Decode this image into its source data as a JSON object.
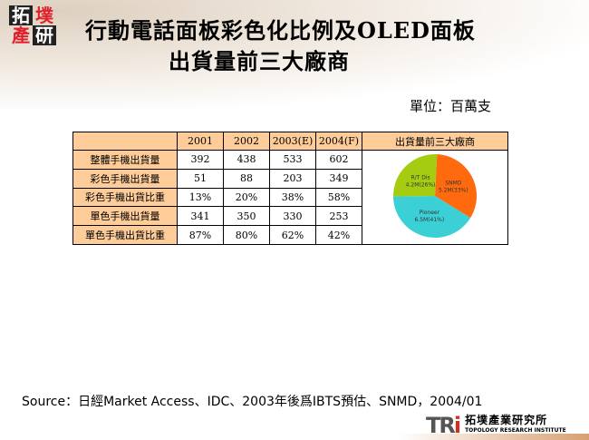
{
  "logo": {
    "chars": [
      "拓",
      "墣",
      "產",
      "研"
    ]
  },
  "title": {
    "line1": "行動電話面板彩色化比例及OLED面板",
    "line2": "出貨量前三大廠商"
  },
  "unit": "單位：百萬支",
  "table": {
    "headers": [
      "",
      "2001",
      "2002",
      "2003(E)",
      "2004(F)",
      "出貨量前三大廠商"
    ],
    "rows": [
      {
        "label": "整體手機出貨量",
        "values": [
          "392",
          "438",
          "533",
          "602"
        ]
      },
      {
        "label": "彩色手機出貨量",
        "values": [
          "51",
          "88",
          "203",
          "349"
        ]
      },
      {
        "label": "彩色手機出貨比重",
        "values": [
          "13%",
          "20%",
          "38%",
          "58%"
        ]
      },
      {
        "label": "單色手機出貨量",
        "values": [
          "341",
          "350",
          "330",
          "253"
        ]
      },
      {
        "label": "單色手機出貨比重",
        "values": [
          "87%",
          "80%",
          "62%",
          "42%"
        ]
      }
    ]
  },
  "chart_data": {
    "type": "pie",
    "slices": [
      {
        "name": "SNMD",
        "label": "5.2M(33%)",
        "value": 5.2,
        "percent": 33,
        "color": "#ff6a0e"
      },
      {
        "name": "Pioneer",
        "label": "6.5M(41%)",
        "value": 6.5,
        "percent": 41,
        "color": "#3bd0d6"
      },
      {
        "name": "R/T Dis",
        "label": "4.2M(26%)",
        "value": 4.2,
        "percent": 26,
        "color": "#a6cc12"
      }
    ]
  },
  "source": "Source：日經Market Access、IDC、2003年後爲IBTS預估、SNMD，2004/01",
  "footer": {
    "brand_main": "TR",
    "brand_i": "i",
    "brand_cn": "拓墣產業研究所",
    "brand_en": "TOPOLOGY RESEARCH INSTITUTE"
  }
}
